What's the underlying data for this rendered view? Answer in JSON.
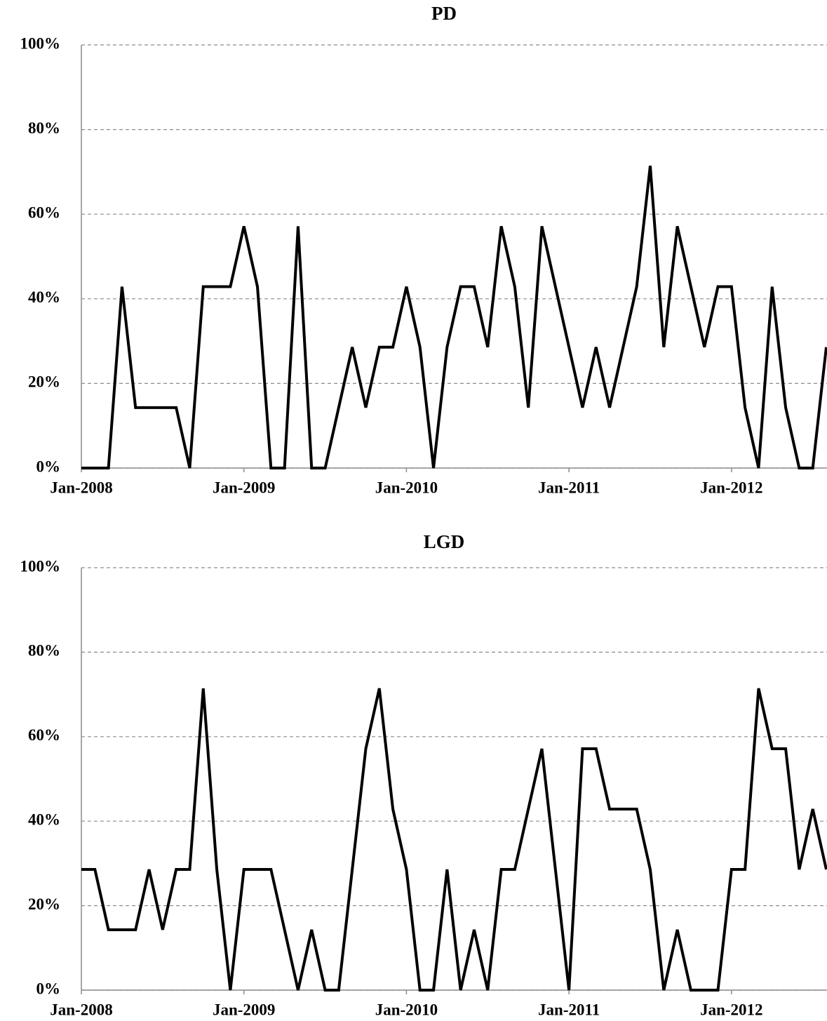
{
  "chart_data": [
    {
      "type": "line",
      "title": "PD",
      "categories": [
        "Jan-2008",
        null,
        null,
        null,
        null,
        null,
        null,
        null,
        null,
        null,
        null,
        null,
        "Jan-2009",
        null,
        null,
        null,
        null,
        null,
        null,
        null,
        null,
        null,
        null,
        null,
        "Jan-2010",
        null,
        null,
        null,
        null,
        null,
        null,
        null,
        null,
        null,
        null,
        null,
        "Jan-2011",
        null,
        null,
        null,
        null,
        null,
        null,
        null,
        null,
        null,
        null,
        null,
        "Jan-2012",
        null,
        null,
        null,
        null,
        null,
        null,
        null
      ],
      "values": [
        0,
        0,
        0,
        42.86,
        14.29,
        14.29,
        14.29,
        14.29,
        0,
        42.86,
        42.86,
        42.86,
        57.14,
        42.86,
        0,
        0,
        57.14,
        0,
        0,
        14.29,
        28.57,
        14.29,
        28.57,
        28.57,
        42.86,
        28.57,
        0,
        28.57,
        42.86,
        42.86,
        28.57,
        57.14,
        42.86,
        14.29,
        57.14,
        42.86,
        28.57,
        14.29,
        28.57,
        14.29,
        28.57,
        42.86,
        71.43,
        28.57,
        57.14,
        42.86,
        28.57,
        42.86,
        42.86,
        14.29,
        0,
        42.86,
        14.29,
        0,
        0,
        28.57
      ],
      "color": "#000000",
      "ylim": [
        0,
        100
      ],
      "yticks": [
        {
          "value": 0,
          "label": "0%"
        },
        {
          "value": 20,
          "label": "20%"
        },
        {
          "value": 40,
          "label": "40%"
        },
        {
          "value": 60,
          "label": "60%"
        },
        {
          "value": 80,
          "label": "80%"
        },
        {
          "value": 100,
          "label": "100%"
        }
      ],
      "grid": true
    },
    {
      "type": "line",
      "title": "LGD",
      "categories": [
        "Jan-2008",
        null,
        null,
        null,
        null,
        null,
        null,
        null,
        null,
        null,
        null,
        null,
        "Jan-2009",
        null,
        null,
        null,
        null,
        null,
        null,
        null,
        null,
        null,
        null,
        null,
        "Jan-2010",
        null,
        null,
        null,
        null,
        null,
        null,
        null,
        null,
        null,
        null,
        null,
        "Jan-2011",
        null,
        null,
        null,
        null,
        null,
        null,
        null,
        null,
        null,
        null,
        null,
        "Jan-2012",
        null,
        null,
        null,
        null,
        null,
        null,
        null
      ],
      "values": [
        28.57,
        28.57,
        14.29,
        14.29,
        14.29,
        28.57,
        14.29,
        28.57,
        28.57,
        71.43,
        28.57,
        0,
        28.57,
        28.57,
        28.57,
        14.29,
        0,
        14.29,
        0,
        0,
        28.57,
        57.14,
        71.43,
        42.86,
        28.57,
        0,
        0,
        28.57,
        0,
        14.29,
        0,
        28.57,
        28.57,
        42.86,
        57.14,
        28.57,
        0,
        57.14,
        57.14,
        42.86,
        42.86,
        42.86,
        28.57,
        0,
        14.29,
        0,
        0,
        0,
        28.57,
        28.57,
        71.43,
        57.14,
        57.14,
        28.57,
        42.86,
        28.57
      ],
      "color": "#000000",
      "ylim": [
        0,
        100
      ],
      "yticks": [
        {
          "value": 0,
          "label": "0%"
        },
        {
          "value": 20,
          "label": "20%"
        },
        {
          "value": 40,
          "label": "40%"
        },
        {
          "value": 60,
          "label": "60%"
        },
        {
          "value": 80,
          "label": "80%"
        },
        {
          "value": 100,
          "label": "100%"
        }
      ],
      "grid": true
    }
  ]
}
